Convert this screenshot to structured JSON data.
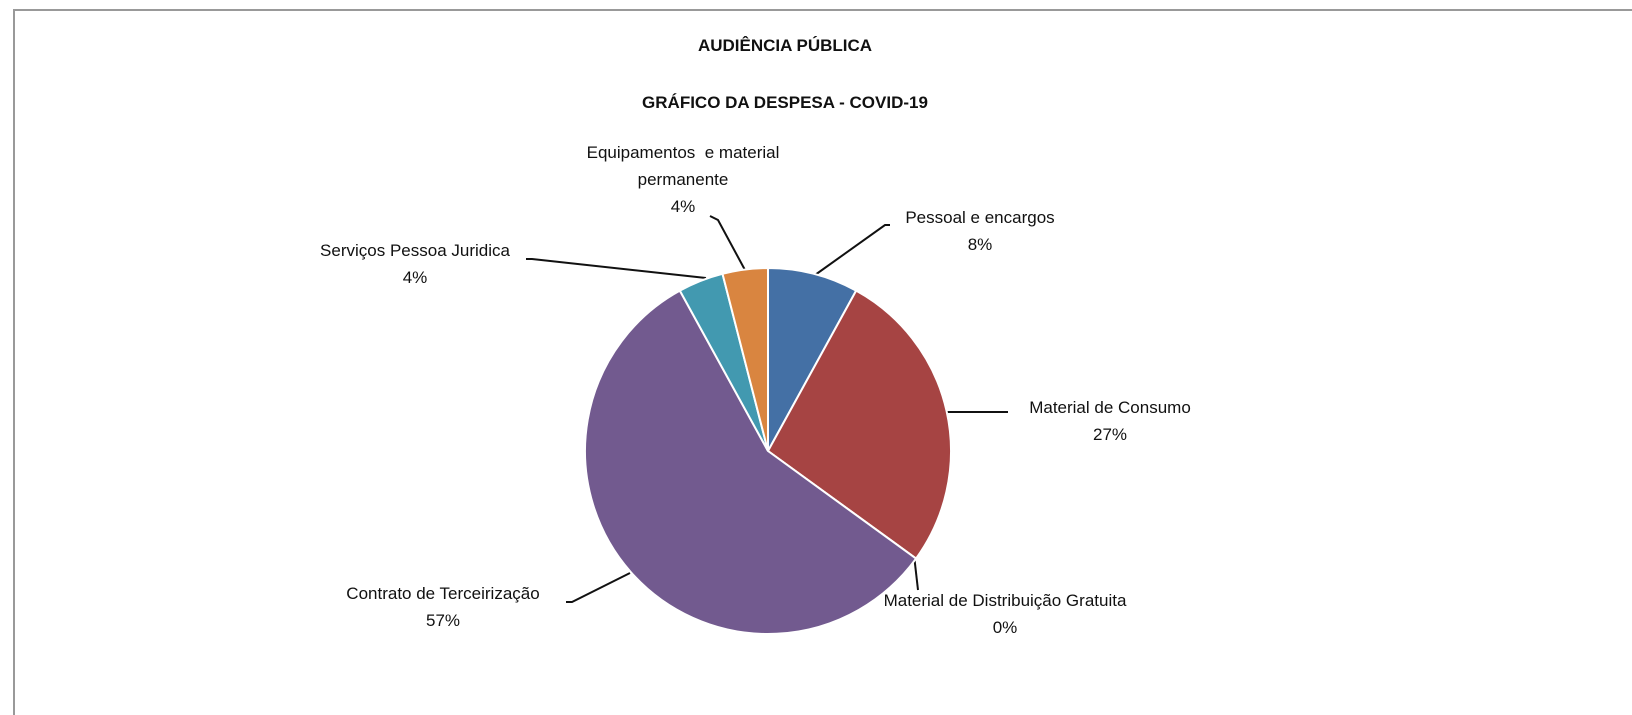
{
  "chart_data": {
    "type": "pie",
    "title": "AUDIÊNCIA PÚBLICA",
    "subtitle": "GRÁFICO DA DESPESA - COVID-19",
    "categories": [
      "Pessoal e encargos",
      "Material de Consumo",
      "Material de Distribuição Gratuita",
      "Contrato de Terceirização",
      "Serviços Pessoa Juridica",
      "Equipamentos  e material permanente"
    ],
    "values": [
      8,
      27,
      0,
      57,
      4,
      4
    ],
    "value_labels": [
      "8%",
      "27%",
      "0%",
      "57%",
      "4%",
      "4%"
    ],
    "colors": [
      "#4470a5",
      "#a64443",
      "#89a54e",
      "#725a8f",
      "#4299b0",
      "#d98540"
    ]
  }
}
